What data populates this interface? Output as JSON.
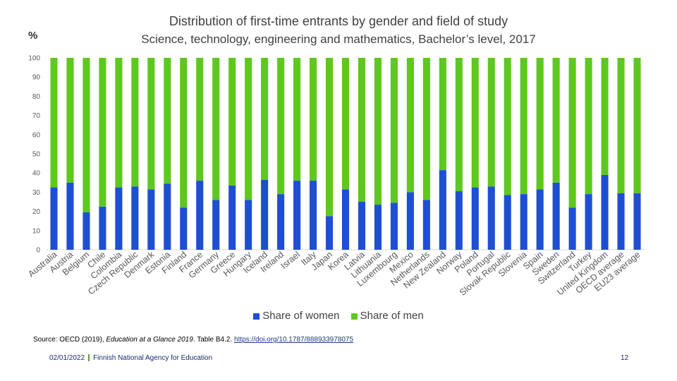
{
  "titles": {
    "line1": "Distribution of first-time entrants by gender and field of study",
    "line2": "Science, technology, engineering and mathematics, Bachelor’s level, 2017"
  },
  "unit_label": "%",
  "chart_data": {
    "type": "bar",
    "stacked": true,
    "ylim": [
      0,
      100
    ],
    "yticks": [
      0,
      10,
      20,
      30,
      40,
      50,
      60,
      70,
      80,
      90,
      100
    ],
    "grid": false,
    "legend_position": "bottom",
    "categories": [
      "Australia",
      "Austria",
      "Belgium",
      "Chile",
      "Colombia",
      "Czech Republic",
      "Denmark",
      "Estonia",
      "Finland",
      "France",
      "Germany",
      "Greece",
      "Hungary",
      "Iceland",
      "Ireland",
      "Israel",
      "Italy",
      "Japan",
      "Korea",
      "Latvia",
      "Lithuania",
      "Luxembourg",
      "Mexico",
      "Netherlands",
      "New Zealand",
      "Norway",
      "Poland",
      "Portugal",
      "Slovak Republic",
      "Slovenia",
      "Spain",
      "Sweden",
      "Switzerland",
      "Turkey",
      "United Kingdom",
      "OECD average",
      "EU23 average"
    ],
    "series": [
      {
        "name": "Share of women",
        "color": "#1f4fd1",
        "values": [
          32.5,
          35,
          19.5,
          22.5,
          32.5,
          33,
          31.5,
          34.5,
          22,
          36,
          26,
          33.5,
          26,
          36.5,
          29,
          36,
          36,
          17.5,
          31.5,
          25,
          23.5,
          24.5,
          30,
          26,
          41.5,
          30.5,
          32.5,
          33,
          28.5,
          29,
          31.5,
          35,
          22,
          29,
          39,
          29.5,
          29.5
        ]
      },
      {
        "name": "Share of men",
        "color": "#5ec81e",
        "values": [
          67.5,
          65,
          80.5,
          77.5,
          67.5,
          67,
          68.5,
          65.5,
          78,
          64,
          74,
          66.5,
          74,
          63.5,
          71,
          64,
          64,
          82.5,
          68.5,
          75,
          76.5,
          75.5,
          70,
          74,
          58.5,
          69.5,
          67.5,
          67,
          71.5,
          71,
          68.5,
          65,
          78,
          71,
          61,
          70.5,
          70.5
        ]
      }
    ]
  },
  "legend": {
    "women_label": "Share of women",
    "men_label": "Share of men"
  },
  "source": {
    "prefix": "Source: OECD (2019), ",
    "publication": "Education at a Glance 2019",
    "middle": ". Table B4.2. ",
    "link": "https://doi.org/10.1787/888933978075"
  },
  "footer": {
    "date": "02/01/2022",
    "organisation": "Finnish National Agency for Education",
    "page_number": "12"
  }
}
